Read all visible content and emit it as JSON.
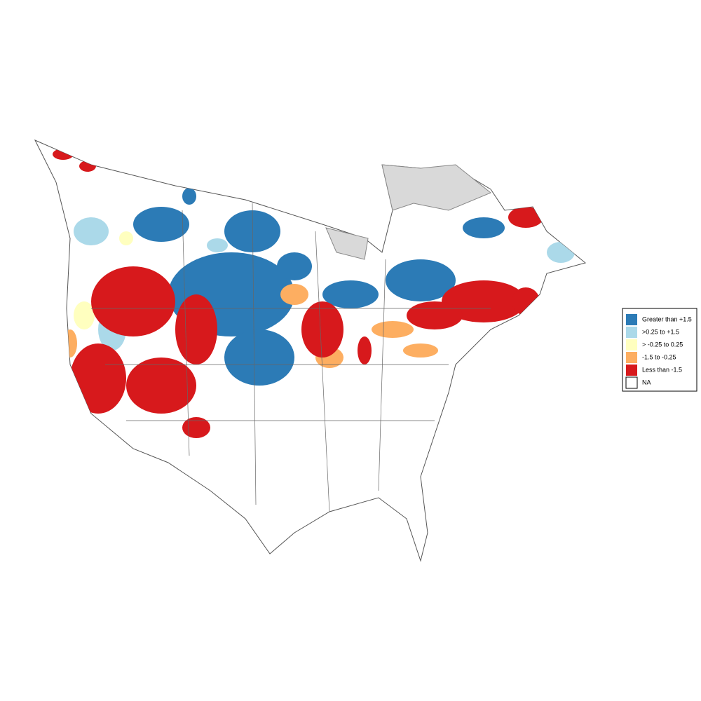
{
  "legend": {
    "items": [
      {
        "label": "Greater than +1.5",
        "color": "#2c7bb6"
      },
      {
        "label": ">0.25 to +1.5",
        "color": "#abd9e9"
      },
      {
        "label": "> -0.25 to 0.25",
        "color": "#ffffbf"
      },
      {
        "label": "-1.5 to -0.25",
        "color": "#fdae61"
      },
      {
        "label": "Less than -1.5",
        "color": "#d7191c"
      },
      {
        "label": "NA",
        "color": "#ffffff"
      }
    ]
  }
}
